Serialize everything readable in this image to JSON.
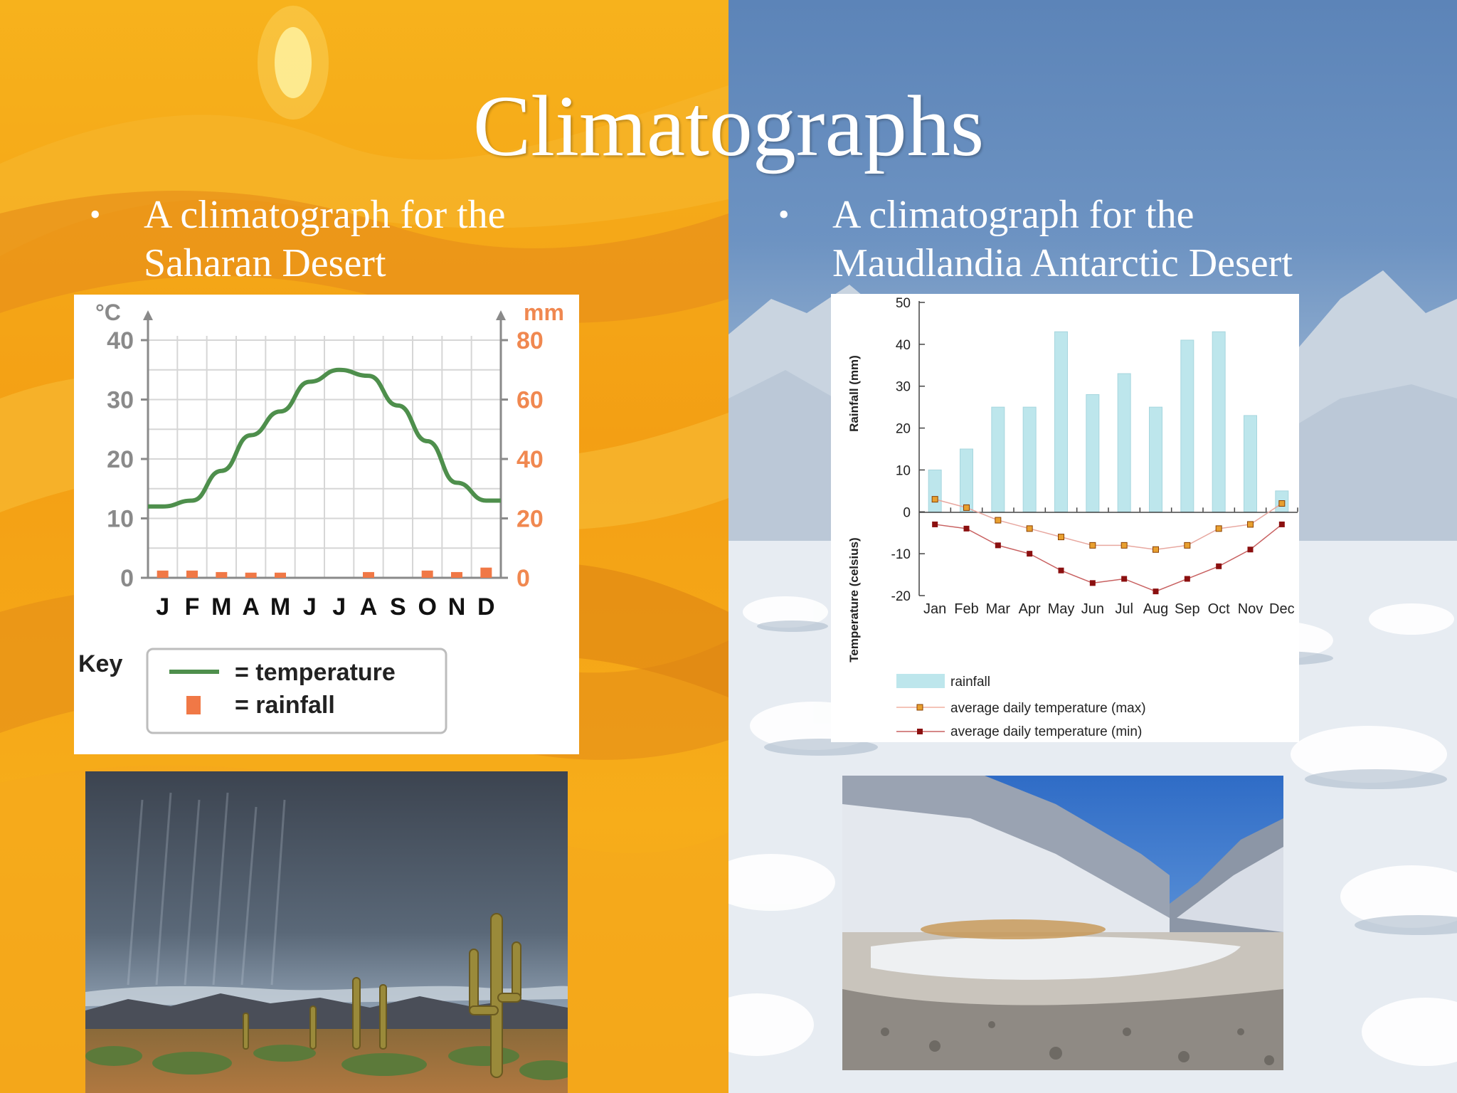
{
  "slide": {
    "title": "Climatographs",
    "bullet_left": {
      "symbol": "•",
      "line1": "A climatograph for the",
      "line2": "Saharan Desert"
    },
    "bullet_right": {
      "symbol": "•",
      "line1": "A climatograph for the",
      "line2": "Maudlandia Antarctic Desert"
    }
  },
  "colors": {
    "sahara_temp_line": "#4e8f4c",
    "sahara_rain": "#f07846",
    "sahara_axis_left": "#8a8a8a",
    "sahara_axis_right": "#f08850",
    "antarctic_rain": "#bde6ec",
    "antarctic_max": "#e8a030",
    "antarctic_min": "#8b1010"
  },
  "chart_data": [
    {
      "type": "line",
      "categories": [
        "J",
        "F",
        "M",
        "A",
        "M",
        "J",
        "J",
        "A",
        "S",
        "O",
        "N",
        "D"
      ],
      "y_left": {
        "label": "°C",
        "ticks": [
          "40",
          "30",
          "20",
          "10",
          "0"
        ],
        "range": [
          0,
          40
        ]
      },
      "y_right": {
        "label": "mm",
        "ticks": [
          "80",
          "60",
          "40",
          "20",
          "0"
        ],
        "range": [
          0,
          80
        ]
      },
      "series": [
        {
          "kind": "line",
          "axis": "left",
          "values": [
            12,
            13,
            18,
            24,
            28,
            33,
            35,
            34,
            29,
            23,
            16,
            13
          ]
        },
        {
          "kind": "bar",
          "axis": "right",
          "values": [
            1,
            1,
            0.5,
            0.3,
            0.3,
            0,
            0,
            0.5,
            0,
            1,
            0.5,
            2
          ]
        }
      ],
      "key": {
        "title": "Key",
        "temperature": "= temperature",
        "rainfall": "= rainfall"
      },
      "grid": true
    },
    {
      "type": "bar",
      "categories": [
        "Jan",
        "Feb",
        "Mar",
        "Apr",
        "May",
        "Jun",
        "Jul",
        "Aug",
        "Sep",
        "Oct",
        "Nov",
        "Dec"
      ],
      "ylabel_top": "Rainfall (mm)",
      "ylabel_bottom": "Temperature (celsius)",
      "y_ticks": [
        "50",
        "40",
        "30",
        "20",
        "10",
        "0",
        "-10",
        "-20"
      ],
      "ylim": [
        -20,
        50
      ],
      "series": [
        {
          "name": "rainfall",
          "kind": "bar",
          "values": [
            10,
            15,
            25,
            25,
            43,
            28,
            33,
            25,
            41,
            43,
            23,
            5
          ]
        },
        {
          "name": "average daily temperature (max)",
          "kind": "line",
          "values": [
            3,
            1,
            -2,
            -4,
            -6,
            -8,
            -8,
            -9,
            -8,
            -4,
            -3,
            2
          ]
        },
        {
          "name": "average daily temperature (min)",
          "kind": "line",
          "values": [
            -3,
            -4,
            -8,
            -10,
            -14,
            -17,
            -16,
            -19,
            -16,
            -13,
            -9,
            -3
          ]
        }
      ],
      "legend": [
        "rainfall",
        "average daily temperature (max)",
        "average daily temperature (min)"
      ]
    }
  ],
  "photos": {
    "left": "saguaro-desert-rainstorm",
    "right": "antarctic-dry-valley"
  }
}
